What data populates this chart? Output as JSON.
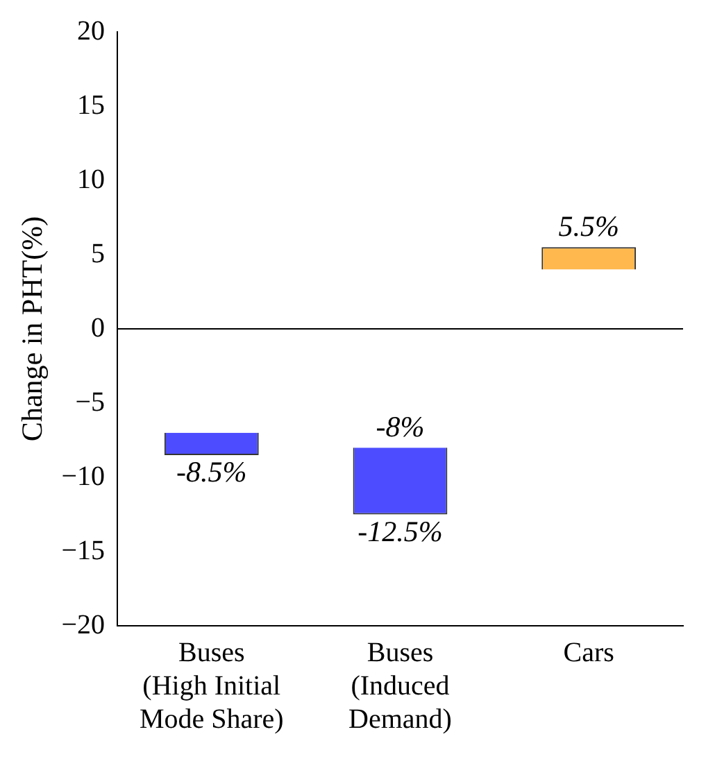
{
  "chart_data": {
    "type": "bar",
    "ylabel": "Change in PHT(%)",
    "categories": [
      "Buses\n(High Initial\nMode Share)",
      "Buses\n(Induced\nDemand)",
      "Cars"
    ],
    "values": [
      -1.5,
      -4.5,
      1.5
    ],
    "base": [
      -7,
      -8,
      4
    ],
    "colors": [
      "#4d4dff",
      "#4d4dff",
      "#ffb84d"
    ],
    "value_labels": [
      "-8.5%",
      "-12.5%",
      "5.5%"
    ],
    "annotations": [
      {
        "text": "-8%",
        "x": "Buses\n(Induced\nDemand)",
        "y": -8
      }
    ],
    "ref_lines": [
      {
        "axis": "y",
        "value": 0,
        "color": "#000000"
      }
    ],
    "ylim": [
      -20,
      20
    ],
    "yticks": [
      {
        "value": -20,
        "label": "−20"
      },
      {
        "value": -15,
        "label": "−15"
      },
      {
        "value": -10,
        "label": "−10"
      },
      {
        "value": -5,
        "label": "−5"
      },
      0,
      5,
      10,
      15,
      20
    ],
    "grid": false,
    "legend": false
  }
}
